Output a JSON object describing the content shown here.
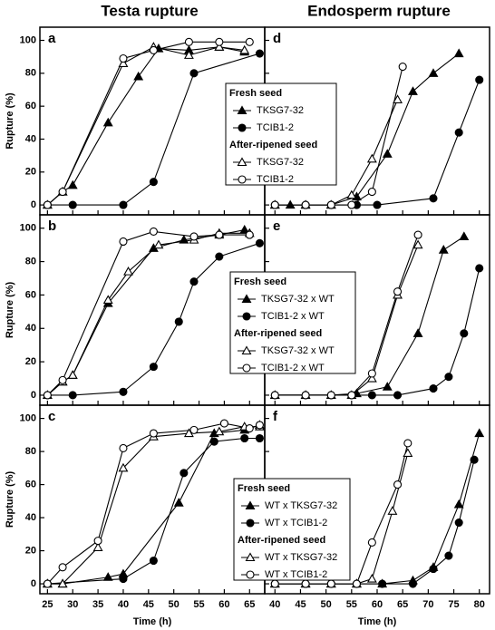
{
  "column_titles": [
    "Testa rupture",
    "Endosperm rupture"
  ],
  "chart_data": [
    {
      "type": "line",
      "label": "a",
      "y_label": "Rupture (%)",
      "xlim": [
        23.5,
        68
      ],
      "xticks": [
        25,
        30,
        35,
        40,
        45,
        50,
        55,
        60,
        65
      ],
      "ylim": [
        -6,
        108
      ],
      "yticks": [
        0,
        20,
        40,
        60,
        80,
        100
      ],
      "series": [
        {
          "color": "#000000",
          "marker": "triangle",
          "filled": true,
          "x": [
            25,
            28,
            30,
            37,
            43,
            47,
            53,
            59,
            64
          ],
          "values": [
            0,
            8,
            12,
            50,
            78,
            95,
            94,
            96,
            93
          ]
        },
        {
          "color": "#000000",
          "marker": "circle",
          "filled": true,
          "x": [
            25,
            30,
            40,
            46,
            54,
            67
          ],
          "values": [
            0,
            0,
            0,
            14,
            80,
            92
          ]
        },
        {
          "color": "#000000",
          "marker": "triangle",
          "filled": false,
          "x": [
            25,
            28,
            40,
            46,
            53,
            59,
            64
          ],
          "values": [
            0,
            8,
            86,
            96,
            91,
            96,
            94
          ]
        },
        {
          "color": "#000000",
          "marker": "circle",
          "filled": false,
          "x": [
            25,
            28,
            40,
            46,
            53,
            59,
            65
          ],
          "values": [
            0,
            8,
            89,
            94,
            99,
            99,
            99
          ]
        }
      ]
    },
    {
      "type": "line",
      "label": "b",
      "y_label": "Rupture (%)",
      "xlim": [
        23.5,
        68
      ],
      "xticks": [
        25,
        30,
        35,
        40,
        45,
        50,
        55,
        60,
        65
      ],
      "ylim": [
        -6,
        108
      ],
      "yticks": [
        0,
        20,
        40,
        60,
        80,
        100
      ],
      "series": [
        {
          "color": "#000000",
          "marker": "triangle",
          "filled": true,
          "x": [
            25,
            28,
            30,
            37,
            46,
            52,
            59,
            64
          ],
          "values": [
            0,
            8,
            12,
            55,
            88,
            93,
            96,
            99
          ]
        },
        {
          "color": "#000000",
          "marker": "circle",
          "filled": true,
          "x": [
            25,
            30,
            40,
            46,
            51,
            54,
            59,
            67
          ],
          "values": [
            0,
            0,
            2,
            17,
            44,
            68,
            83,
            91
          ]
        },
        {
          "color": "#000000",
          "marker": "triangle",
          "filled": false,
          "x": [
            25,
            28,
            30,
            37,
            41,
            47,
            54,
            59,
            65
          ],
          "values": [
            0,
            8,
            12,
            57,
            74,
            90,
            93,
            97,
            97
          ]
        },
        {
          "color": "#000000",
          "marker": "circle",
          "filled": false,
          "x": [
            25,
            28,
            40,
            46,
            54,
            59,
            65
          ],
          "values": [
            0,
            9,
            92,
            98,
            95,
            96,
            96
          ]
        }
      ]
    },
    {
      "type": "line",
      "label": "c",
      "y_label": "Rupture (%)",
      "x_label": "Time (h)",
      "xlim": [
        23.5,
        68
      ],
      "xticks": [
        25,
        30,
        35,
        40,
        45,
        50,
        55,
        60,
        65
      ],
      "ylim": [
        -6,
        108
      ],
      "yticks": [
        0,
        20,
        40,
        60,
        80,
        100
      ],
      "series": [
        {
          "color": "#000000",
          "marker": "triangle",
          "filled": true,
          "x": [
            25,
            28,
            37,
            40,
            51,
            58,
            64,
            67
          ],
          "values": [
            0,
            0,
            4,
            6,
            49,
            91,
            93,
            96
          ]
        },
        {
          "color": "#000000",
          "marker": "circle",
          "filled": true,
          "x": [
            25,
            40,
            46,
            52,
            58,
            64,
            67
          ],
          "values": [
            0,
            3,
            14,
            67,
            86,
            88,
            88
          ]
        },
        {
          "color": "#000000",
          "marker": "triangle",
          "filled": false,
          "x": [
            25,
            28,
            35,
            40,
            46,
            53,
            59,
            64,
            67
          ],
          "values": [
            0,
            0,
            22,
            70,
            89,
            91,
            92,
            95,
            95
          ]
        },
        {
          "color": "#000000",
          "marker": "circle",
          "filled": false,
          "x": [
            25,
            28,
            35,
            40,
            46,
            54,
            60,
            65,
            67
          ],
          "values": [
            0,
            10,
            26,
            82,
            91,
            93,
            97,
            94,
            96
          ]
        }
      ]
    },
    {
      "type": "line",
      "label": "d",
      "xlim": [
        38,
        82
      ],
      "xticks": [
        40,
        45,
        50,
        55,
        60,
        65,
        70,
        75,
        80
      ],
      "ylim": [
        -6,
        108
      ],
      "yticks": [
        0,
        20,
        40,
        60,
        80,
        100
      ],
      "legend_groups": [
        "Fresh seed",
        "After-ripened seed"
      ],
      "series": [
        {
          "name": "TKSG7-32",
          "color": "#000000",
          "marker": "triangle",
          "filled": true,
          "x": [
            40,
            43,
            46,
            51,
            56,
            62,
            67,
            71,
            76
          ],
          "values": [
            0,
            0,
            0,
            0,
            5,
            31,
            69,
            80,
            92
          ]
        },
        {
          "name": "TCIB1-2",
          "color": "#000000",
          "marker": "circle",
          "filled": true,
          "x": [
            40,
            46,
            51,
            56,
            60,
            71,
            76,
            80
          ],
          "values": [
            0,
            0,
            0,
            0,
            0,
            4,
            44,
            76
          ]
        },
        {
          "name": "TKSG7-32",
          "color": "#000000",
          "marker": "triangle",
          "filled": false,
          "x": [
            40,
            46,
            51,
            55,
            59,
            64
          ],
          "values": [
            0,
            0,
            0,
            6,
            28,
            64
          ]
        },
        {
          "name": "TCIB1-2",
          "color": "#000000",
          "marker": "circle",
          "filled": false,
          "x": [
            40,
            46,
            51,
            55,
            59,
            65
          ],
          "values": [
            0,
            0,
            0,
            0,
            8,
            84
          ]
        }
      ]
    },
    {
      "type": "line",
      "label": "e",
      "xlim": [
        38,
        82
      ],
      "xticks": [
        40,
        45,
        50,
        55,
        60,
        65,
        70,
        75,
        80
      ],
      "ylim": [
        -6,
        108
      ],
      "yticks": [
        0,
        20,
        40,
        60,
        80,
        100
      ],
      "legend_groups": [
        "Fresh seed",
        "After-ripened seed"
      ],
      "series": [
        {
          "name": "TKSG7-32 x WT",
          "color": "#000000",
          "marker": "triangle",
          "filled": true,
          "x": [
            40,
            46,
            51,
            56,
            62,
            68,
            73,
            77
          ],
          "values": [
            0,
            0,
            0,
            1,
            5,
            37,
            87,
            95
          ]
        },
        {
          "name": "TCIB1-2 x WT",
          "color": "#000000",
          "marker": "circle",
          "filled": true,
          "x": [
            40,
            46,
            51,
            55,
            59,
            64,
            71,
            74,
            77,
            80
          ],
          "values": [
            0,
            0,
            0,
            0,
            0,
            0,
            4,
            11,
            37,
            76
          ]
        },
        {
          "name": "TKSG7-32 x WT",
          "color": "#000000",
          "marker": "triangle",
          "filled": false,
          "x": [
            40,
            46,
            51,
            55,
            59,
            64,
            68
          ],
          "values": [
            0,
            0,
            0,
            0,
            10,
            60,
            90
          ]
        },
        {
          "name": "TCIB1-2 x WT",
          "color": "#000000",
          "marker": "circle",
          "filled": false,
          "x": [
            40,
            46,
            51,
            55,
            59,
            64,
            68
          ],
          "values": [
            0,
            0,
            0,
            0,
            13,
            62,
            96
          ]
        }
      ]
    },
    {
      "type": "line",
      "label": "f",
      "x_label": "Time (h)",
      "xlim": [
        38,
        82
      ],
      "xticks": [
        40,
        45,
        50,
        55,
        60,
        65,
        70,
        75,
        80
      ],
      "ylim": [
        -6,
        108
      ],
      "yticks": [
        0,
        20,
        40,
        60,
        80,
        100
      ],
      "legend_groups": [
        "Fresh seed",
        "After-ripened seed"
      ],
      "series": [
        {
          "name": "WT x TKSG7-32",
          "color": "#000000",
          "marker": "triangle",
          "filled": true,
          "x": [
            40,
            46,
            51,
            56,
            61,
            67,
            71,
            76,
            80
          ],
          "values": [
            0,
            0,
            0,
            0,
            0,
            2,
            10,
            48,
            91
          ]
        },
        {
          "name": "WT x TCIB1-2",
          "color": "#000000",
          "marker": "circle",
          "filled": true,
          "x": [
            40,
            46,
            51,
            56,
            61,
            67,
            71,
            74,
            76,
            79
          ],
          "values": [
            0,
            0,
            0,
            0,
            0,
            0,
            9,
            17,
            37,
            75
          ]
        },
        {
          "name": "WT x TKSG7-32",
          "color": "#000000",
          "marker": "triangle",
          "filled": false,
          "x": [
            40,
            46,
            51,
            56,
            59,
            63,
            66
          ],
          "values": [
            0,
            0,
            0,
            0,
            3,
            44,
            79
          ]
        },
        {
          "name": "WT x TCIB1-2",
          "color": "#000000",
          "marker": "circle",
          "filled": false,
          "x": [
            40,
            46,
            51,
            56,
            59,
            64,
            66
          ],
          "values": [
            0,
            0,
            0,
            0,
            25,
            60,
            85
          ]
        }
      ]
    }
  ]
}
